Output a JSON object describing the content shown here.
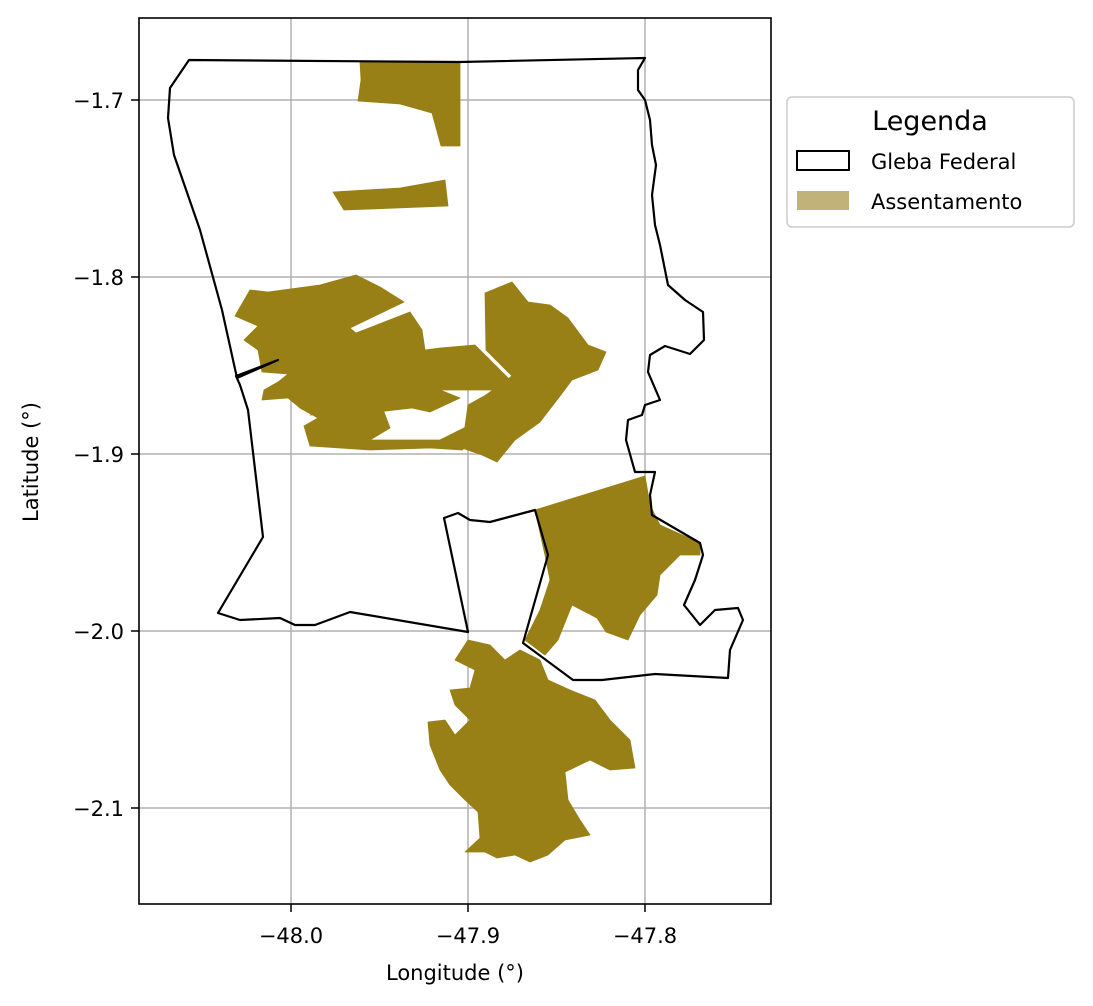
{
  "axes": {
    "xlabel": "Longitude (°)",
    "ylabel": "Latitude (°)",
    "xlim": [
      -48.086,
      -47.729
    ],
    "ylim": [
      -2.156,
      -1.654
    ],
    "xticks": [
      {
        "value": -48.0,
        "label": "−48.0"
      },
      {
        "value": -47.9,
        "label": "−47.9"
      },
      {
        "value": -47.8,
        "label": "−47.8"
      }
    ],
    "yticks": [
      {
        "value": -1.7,
        "label": "−1.7"
      },
      {
        "value": -1.8,
        "label": "−1.8"
      },
      {
        "value": -1.9,
        "label": "−1.9"
      },
      {
        "value": -2.0,
        "label": "−2.0"
      },
      {
        "value": -2.1,
        "label": "−2.1"
      }
    ],
    "grid": true
  },
  "legend": {
    "title": "Legenda",
    "placement": "outside upper right",
    "items": [
      {
        "label": "Gleba Federal",
        "kind": "outline"
      },
      {
        "label": "Assentamento",
        "kind": "fill"
      }
    ]
  },
  "colors": {
    "gleba_edge": "#000000",
    "assentamento_fill": "#988017",
    "assentamento_legend_fill": "#c0b278",
    "grid": "#b0b0b0"
  }
}
